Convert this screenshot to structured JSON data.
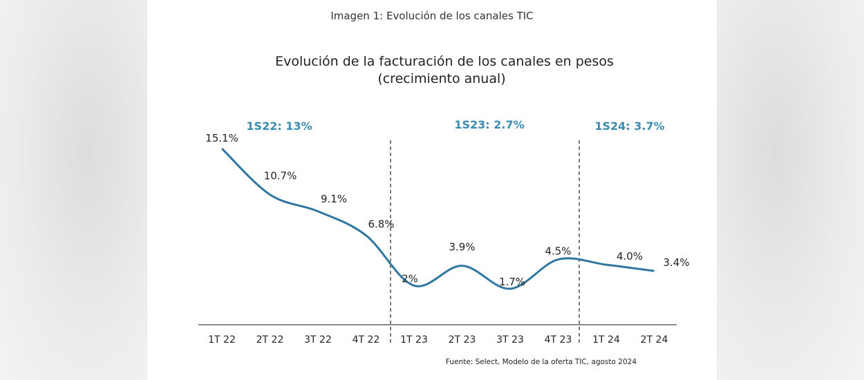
{
  "caption": "Imagen 1: Evolución de los canales TIC",
  "chart_data": {
    "type": "line",
    "title": "Evolución de la facturación de los canales en pesos",
    "subtitle": "(crecimiento anual)",
    "categories": [
      "1T 22",
      "2T 22",
      "3T 22",
      "4T 22",
      "1T 23",
      "2T 23",
      "3T 23",
      "4T 23",
      "1T 24",
      "2T 24"
    ],
    "values": [
      15.1,
      10.7,
      9.1,
      6.8,
      2.0,
      3.9,
      1.7,
      4.5,
      4.0,
      3.4
    ],
    "value_labels": [
      "15.1%",
      "10.7%",
      "9.1%",
      "6.8%",
      "2%",
      "3.9%",
      "1.7%",
      "4.5%",
      "4.0%",
      "3.4%"
    ],
    "period_labels": [
      "1S22:  13%",
      "1S23: 2.7%",
      "1S24: 3.7%"
    ],
    "source": "Fuente: Select, Modelo de la oferta TIC, agosto 2024",
    "line_color": "#2e75a0",
    "period_color": "#3b8ab0",
    "grid": false
  }
}
